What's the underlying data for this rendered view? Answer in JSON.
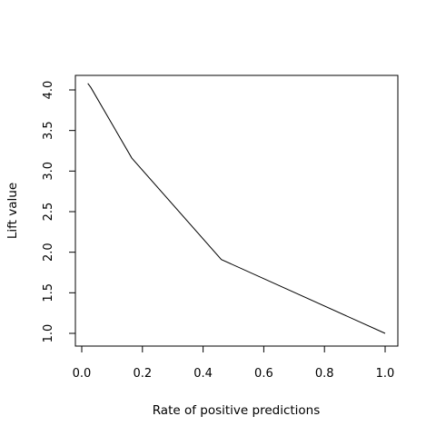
{
  "chart_data": {
    "type": "line",
    "title": "",
    "xlabel": "Rate of positive predictions",
    "ylabel": "Lift value",
    "xlim": [
      0.0,
      1.0
    ],
    "ylim": [
      1.0,
      4.0
    ],
    "xticks": [
      "0.0",
      "0.2",
      "0.4",
      "0.6",
      "0.8",
      "1.0"
    ],
    "yticks": [
      "1.0",
      "1.5",
      "2.0",
      "2.5",
      "3.0",
      "3.5",
      "4.0"
    ],
    "grid": false,
    "legend": "none",
    "series": [
      {
        "x": [
          0.02,
          0.03,
          0.165,
          0.46,
          1.0
        ],
        "y": [
          4.08,
          4.03,
          3.16,
          1.91,
          1.0
        ],
        "color": "#000000"
      }
    ]
  }
}
